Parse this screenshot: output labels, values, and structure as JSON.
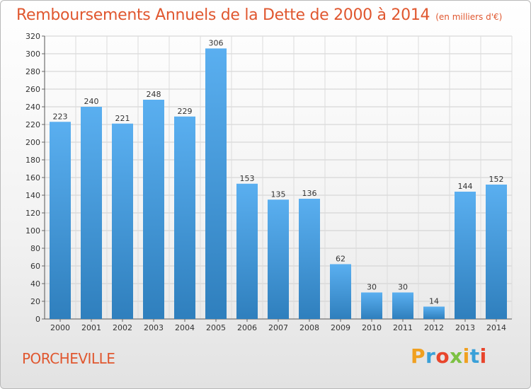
{
  "header": {
    "title": "Remboursements Annuels de la Dette de 2000 à 2014",
    "subtitle": "(en milliers d'€)"
  },
  "footer": {
    "commune": "PORCHEVILLE",
    "brand_letters": [
      {
        "ch": "P",
        "color": "#f0a020"
      },
      {
        "ch": "r",
        "color": "#3aa0d8"
      },
      {
        "ch": "o",
        "color": "#e8452c"
      },
      {
        "ch": "x",
        "color": "#7cc142"
      },
      {
        "ch": "i",
        "color": "#f0a020"
      },
      {
        "ch": "t",
        "color": "#3aa0d8"
      },
      {
        "ch": "i",
        "color": "#e8452c"
      }
    ]
  },
  "chart_data": {
    "type": "bar",
    "categories": [
      "2000",
      "2001",
      "2002",
      "2003",
      "2004",
      "2005",
      "2006",
      "2007",
      "2008",
      "2009",
      "2010",
      "2011",
      "2012",
      "2013",
      "2014"
    ],
    "values": [
      223,
      240,
      221,
      248,
      229,
      306,
      153,
      135,
      136,
      62,
      30,
      30,
      14,
      144,
      152
    ],
    "ylim": [
      0,
      320
    ],
    "yticks": [
      0,
      20,
      40,
      60,
      80,
      100,
      120,
      140,
      160,
      180,
      200,
      220,
      240,
      260,
      280,
      300,
      320
    ],
    "grid": true,
    "bar_color_top": "#5aaff0",
    "bar_color_bottom": "#2f7fbd"
  }
}
